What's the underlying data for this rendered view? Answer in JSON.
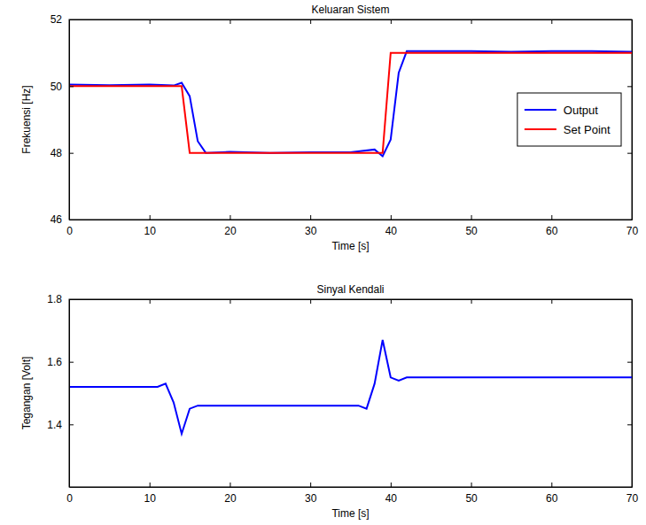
{
  "chart_data": [
    {
      "type": "line",
      "title": "Keluaran Sistem",
      "xlabel": "Time [s]",
      "ylabel": "Frekuensi [Hz]",
      "x": [
        0,
        5,
        10,
        13,
        14,
        15,
        16,
        17,
        20,
        25,
        30,
        35,
        38,
        39,
        40,
        41,
        42,
        45,
        50,
        55,
        60,
        65,
        70
      ],
      "series": [
        {
          "name": "Output",
          "color": "#0000ff",
          "values": [
            50.05,
            50.03,
            50.05,
            50.02,
            50.1,
            49.7,
            48.35,
            48.0,
            48.03,
            48.0,
            48.02,
            48.02,
            48.1,
            47.9,
            48.4,
            50.4,
            51.05,
            51.05,
            51.05,
            51.03,
            51.05,
            51.05,
            51.03
          ]
        },
        {
          "name": "Set Point",
          "color": "#ff0000",
          "values": [
            50,
            50,
            50,
            50,
            50,
            48,
            48,
            48,
            48,
            48,
            48,
            48,
            48,
            48,
            51,
            51,
            51,
            51,
            51,
            51,
            51,
            51,
            51
          ]
        }
      ],
      "xlim": [
        0,
        70
      ],
      "xticks": [
        0,
        10,
        20,
        30,
        40,
        50,
        60,
        70
      ],
      "ylim": [
        46,
        52
      ],
      "yticks": [
        46,
        48,
        50,
        52
      ],
      "legend": "east"
    },
    {
      "type": "line",
      "title": "Sinyal Kendali",
      "xlabel": "Time [s]",
      "ylabel": "Tegangan [Volt]",
      "x": [
        0,
        5,
        10,
        11,
        12,
        13,
        14,
        15,
        16,
        20,
        25,
        30,
        35,
        36,
        37,
        38,
        39,
        40,
        41,
        42,
        45,
        50,
        55,
        60,
        65,
        70
      ],
      "series": [
        {
          "color": "#0000ff",
          "values": [
            1.52,
            1.52,
            1.52,
            1.52,
            1.53,
            1.47,
            1.37,
            1.45,
            1.46,
            1.46,
            1.46,
            1.46,
            1.46,
            1.46,
            1.45,
            1.53,
            1.67,
            1.55,
            1.54,
            1.55,
            1.55,
            1.55,
            1.55,
            1.55,
            1.55,
            1.55
          ]
        }
      ],
      "xlim": [
        0,
        70
      ],
      "xticks": [
        0,
        10,
        20,
        30,
        40,
        50,
        60,
        70
      ],
      "ylim": [
        1.2,
        1.8
      ],
      "yticks": [
        1.4,
        1.6,
        1.8
      ]
    }
  ]
}
